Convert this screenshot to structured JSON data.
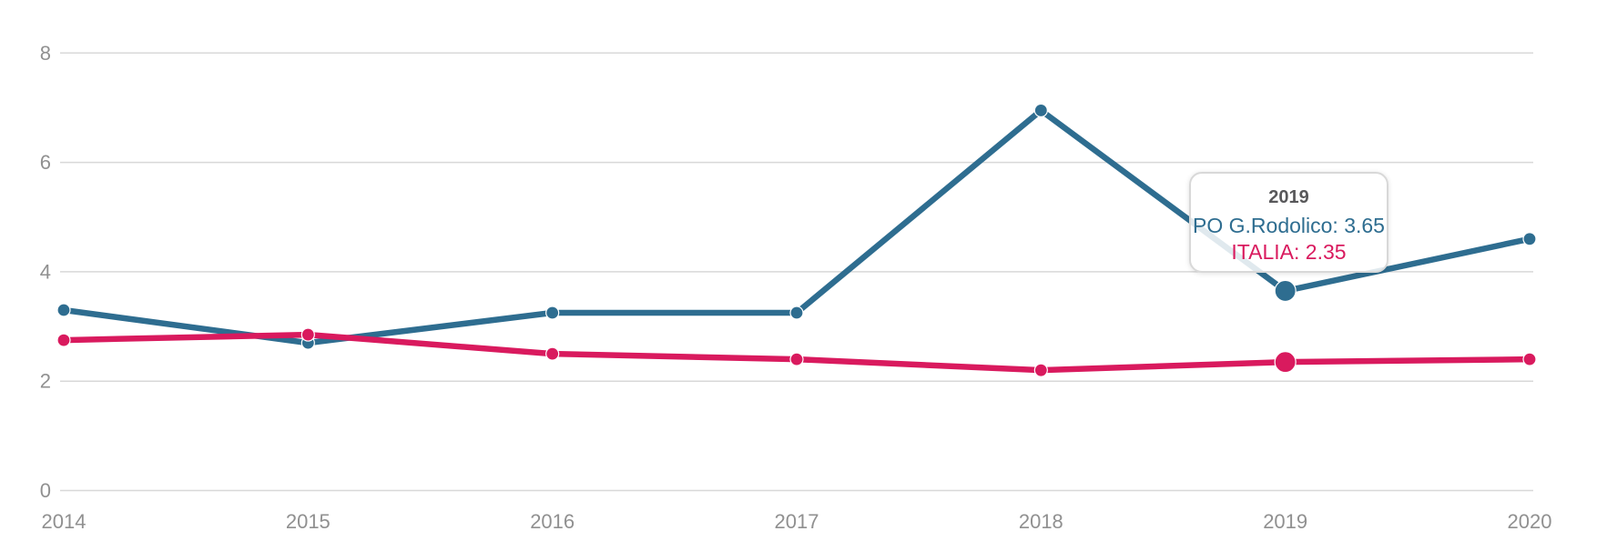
{
  "chart_data": {
    "type": "line",
    "title": "",
    "x_categories": [
      "2014",
      "2015",
      "2016",
      "2017",
      "2018",
      "2019",
      "2020"
    ],
    "yticks": [
      0,
      2,
      4,
      6,
      8
    ],
    "ylim": [
      0,
      8
    ],
    "grid": "horizontal gridlines on",
    "legend": "none",
    "series": [
      {
        "name": "PO G.Rodolico",
        "color": "#2e6d90",
        "values": [
          3.3,
          2.7,
          3.25,
          3.25,
          6.95,
          3.65,
          4.6
        ]
      },
      {
        "name": "ITALIA",
        "color": "#d91a5e",
        "values": [
          2.75,
          2.85,
          2.5,
          2.4,
          2.2,
          2.35,
          2.4
        ]
      }
    ],
    "highlighted_category": "2019",
    "highlighted_index": 5
  },
  "tooltip": {
    "title": "2019",
    "entries": [
      {
        "text": "PO G.Rodolico: 3.65",
        "color": "#2e6d90"
      },
      {
        "text": "ITALIA: 2.35",
        "color": "#d91a5e"
      }
    ]
  },
  "colors": {
    "grid": "#d8d8d8",
    "axis_label": "#909090",
    "tooltip_title": "#58585a",
    "tooltip_border": "#d8d8d8",
    "background": "#ffffff"
  }
}
